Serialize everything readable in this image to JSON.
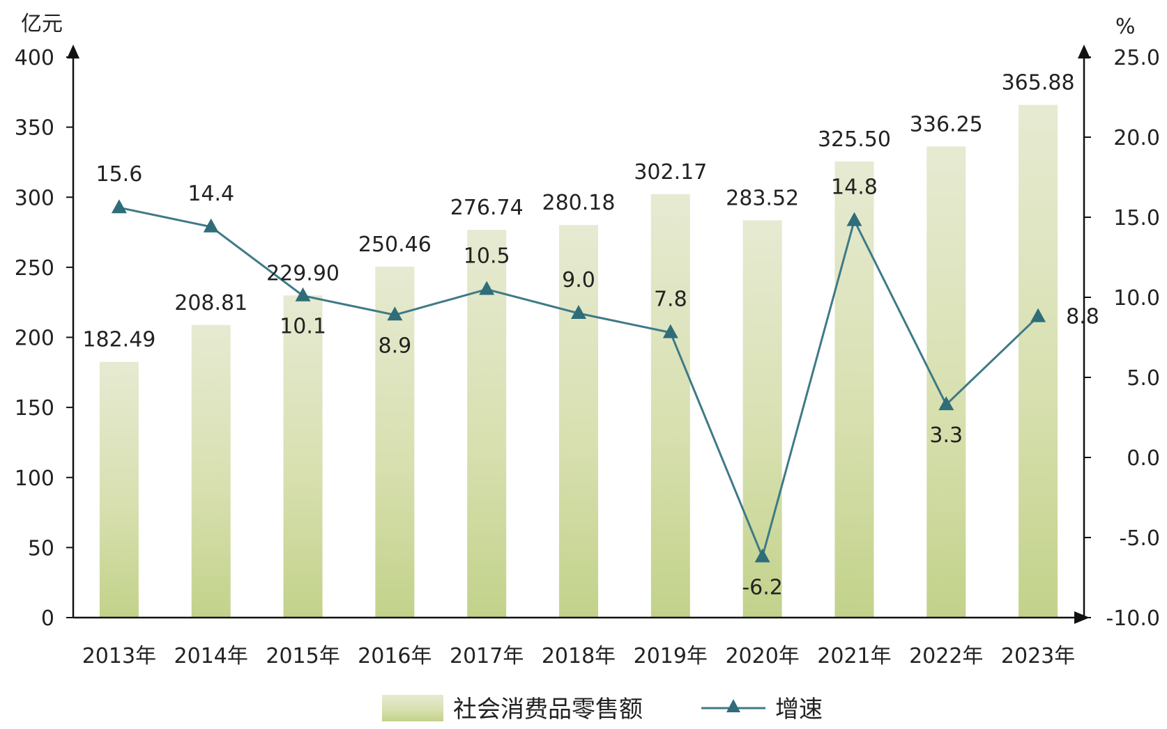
{
  "chart_data": {
    "type": "bar",
    "categories": [
      "2013年",
      "2014年",
      "2015年",
      "2016年",
      "2017年",
      "2018年",
      "2019年",
      "2020年",
      "2021年",
      "2022年",
      "2023年"
    ],
    "series": [
      {
        "name": "社会消费品零售额",
        "type": "bar",
        "axis": "left",
        "values": [
          182.49,
          208.81,
          229.9,
          250.46,
          276.74,
          280.18,
          302.17,
          283.52,
          325.5,
          336.25,
          365.88
        ],
        "labels": [
          "182.49",
          "208.81",
          "229.90",
          "250.46",
          "276.74",
          "280.18",
          "302.17",
          "283.52",
          "325.50",
          "336.25",
          "365.88"
        ],
        "color": "#d6deb0"
      },
      {
        "name": "增速",
        "type": "line",
        "axis": "right",
        "values": [
          15.6,
          14.4,
          10.1,
          8.9,
          10.5,
          9.0,
          7.8,
          -6.2,
          14.8,
          3.3,
          8.8
        ],
        "labels": [
          "15.6",
          "14.4",
          "10.1",
          "8.9",
          "10.5",
          "9.0",
          "7.8",
          "-6.2",
          "14.8",
          "3.3",
          "8.8"
        ],
        "color": "#3e7a86"
      }
    ],
    "y_left": {
      "unit": "亿元",
      "range": [
        0,
        400
      ],
      "ticks": [
        "0",
        "50",
        "100",
        "150",
        "200",
        "250",
        "300",
        "350",
        "400"
      ]
    },
    "y_right": {
      "unit": "%",
      "range": [
        -10,
        25
      ],
      "ticks": [
        "-10.0",
        "-5.0",
        "0.0",
        "5.0",
        "10.0",
        "15.0",
        "20.0",
        "25.0"
      ]
    },
    "grid": false,
    "legend": "bottom-center"
  }
}
